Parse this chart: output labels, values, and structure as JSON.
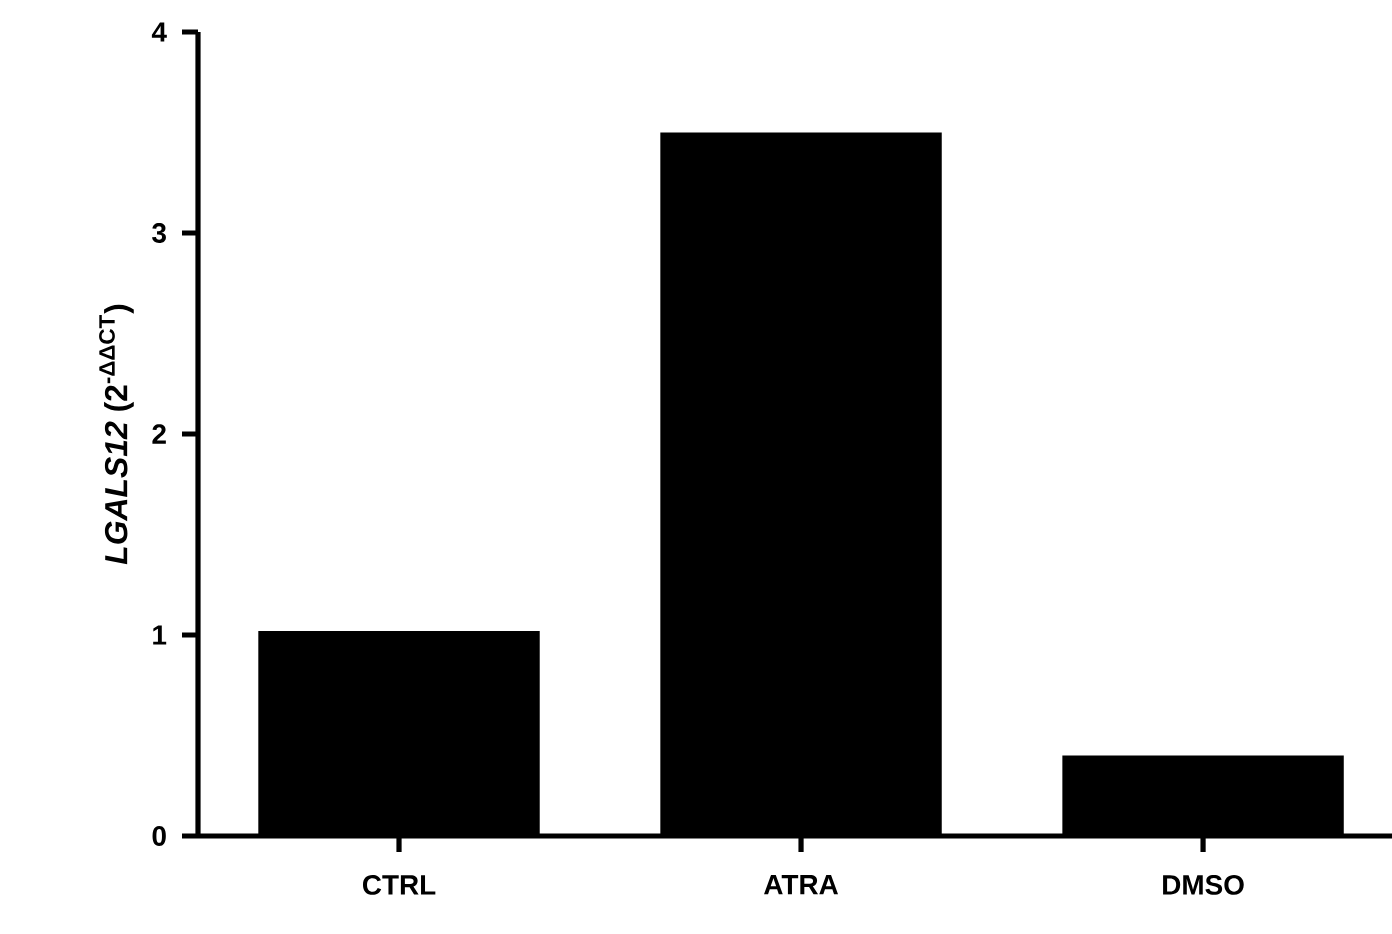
{
  "chart_data": {
    "type": "bar",
    "ylabel": "*LGALS12* (2$^{-ΔΔCT}$)",
    "categories": [
      "CTRL",
      "ATRA",
      "DMSO"
    ],
    "values": [
      1.02,
      3.5,
      0.4
    ],
    "color": "#000000",
    "ylim": [
      0,
      4
    ],
    "yticks": [
      0,
      1,
      2,
      3,
      4
    ],
    "grid": false
  }
}
